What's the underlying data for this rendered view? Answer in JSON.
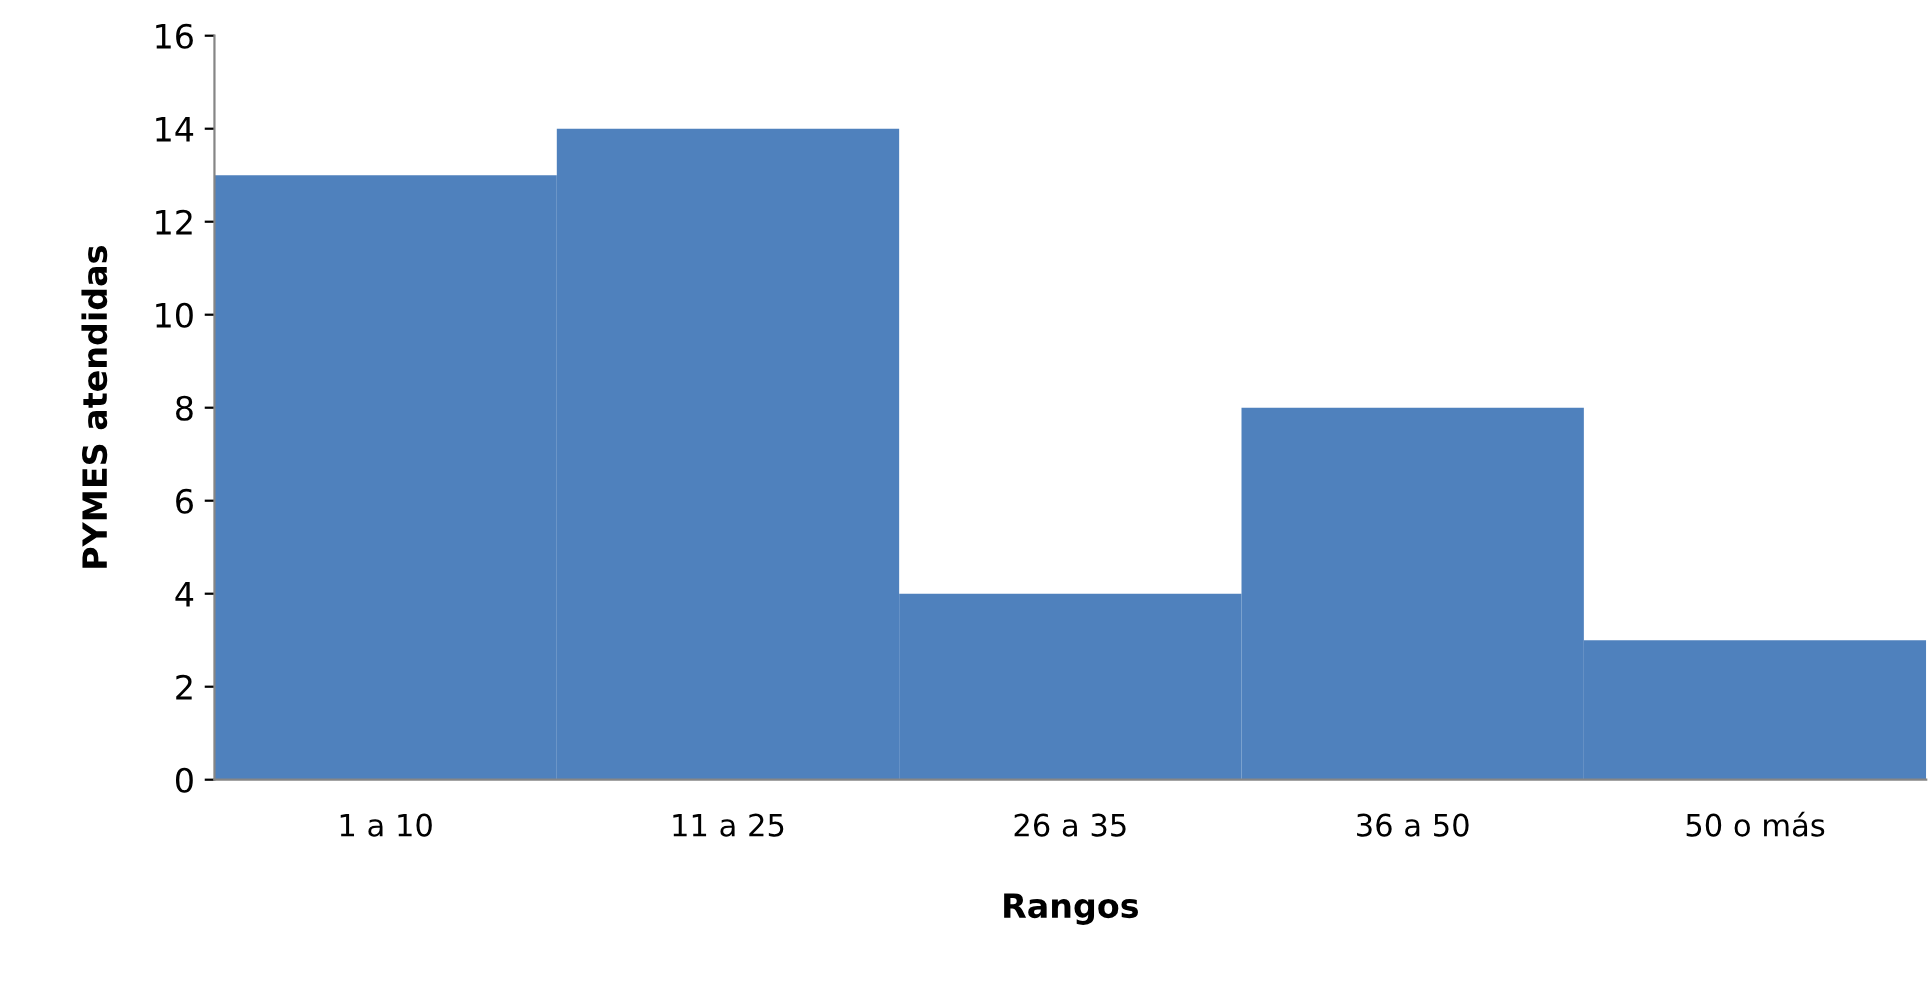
{
  "chart_data": {
    "type": "bar",
    "xlabel": "Rangos",
    "ylabel": "PYMES atendidas",
    "categories": [
      "1 a 10",
      "11 a 25",
      "26 a 35",
      "36 a 50",
      "50 o más"
    ],
    "values": [
      13,
      14,
      4,
      8,
      3
    ],
    "color": "#4f81bd",
    "ylim": [
      0,
      16
    ],
    "yticks": [
      0,
      2,
      4,
      6,
      8,
      10,
      12,
      14,
      16
    ],
    "grid": false,
    "legend": false
  }
}
